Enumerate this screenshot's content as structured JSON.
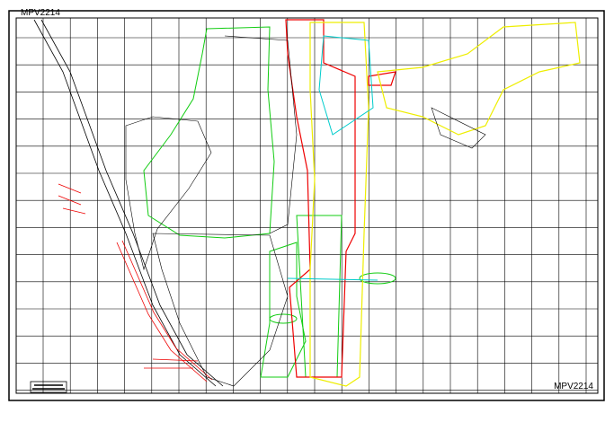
{
  "drawing": {
    "title_top": "MPV2214",
    "title_bottom": "MPV2214"
  }
}
